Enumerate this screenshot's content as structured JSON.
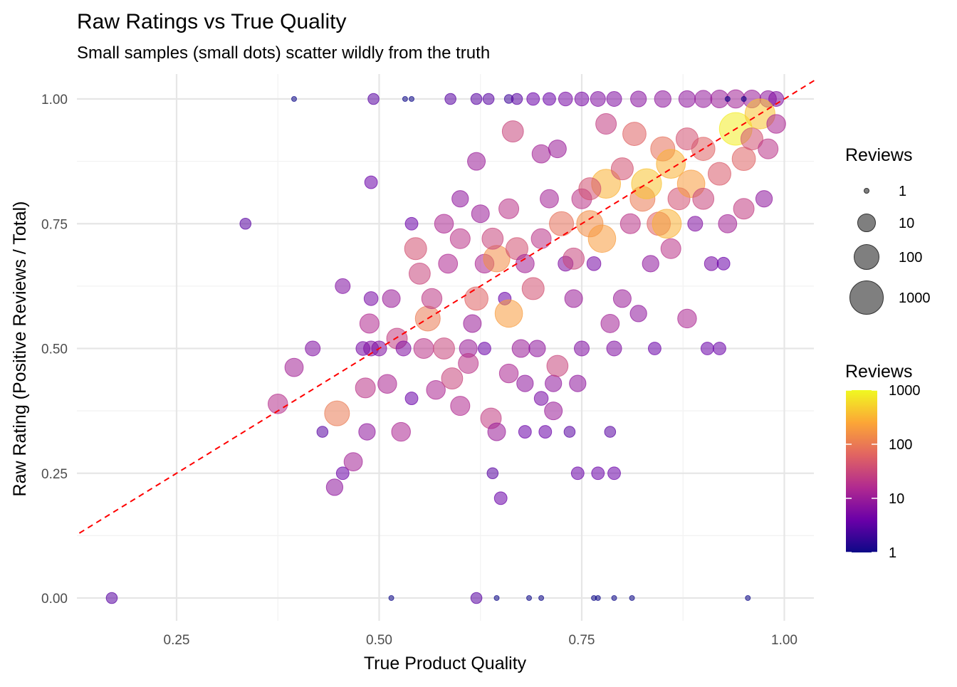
{
  "chart_data": {
    "type": "scatter",
    "title": "Raw Ratings vs True Quality",
    "subtitle": "Small samples (small dots) scatter wildly from the truth",
    "xlabel": "True Product Quality",
    "ylabel": "Raw Rating (Positive Reviews / Total)",
    "xlim": [
      0.127,
      1.037
    ],
    "ylim": [
      -0.045,
      1.045
    ],
    "x_ticks": [
      "0.25",
      "0.50",
      "0.75",
      "1.00"
    ],
    "y_ticks": [
      "0.00",
      "0.25",
      "0.50",
      "0.75",
      "1.00"
    ],
    "grid": true,
    "reference_line": {
      "type": "y = x",
      "style": "dashed",
      "color": "#ff0000"
    },
    "size_legend": {
      "title": "Reviews",
      "labels": [
        "1",
        "10",
        "100",
        "1000"
      ],
      "values": [
        1,
        10,
        100,
        1000
      ]
    },
    "color_legend": {
      "title": "Reviews",
      "labels": [
        "1000",
        "100",
        "10",
        "1"
      ],
      "values": [
        1000,
        100,
        10,
        1
      ],
      "scale": "log10",
      "palette": [
        "#0d0887",
        "#6a00a8",
        "#b12a90",
        "#e16462",
        "#fca636",
        "#f0f921"
      ]
    },
    "legend_placement": "right",
    "points": [
      [
        0.395,
        1,
        1
      ],
      [
        0.493,
        1,
        3
      ],
      [
        0.532,
        1,
        1
      ],
      [
        0.54,
        1,
        1
      ],
      [
        0.588,
        1,
        3
      ],
      [
        0.62,
        1,
        3
      ],
      [
        0.635,
        1,
        3
      ],
      [
        0.66,
        1,
        2
      ],
      [
        0.67,
        1,
        3
      ],
      [
        0.69,
        1,
        4
      ],
      [
        0.71,
        1,
        4
      ],
      [
        0.73,
        1,
        5
      ],
      [
        0.75,
        1,
        5
      ],
      [
        0.77,
        1,
        6
      ],
      [
        0.79,
        1,
        6
      ],
      [
        0.82,
        1,
        7
      ],
      [
        0.85,
        1,
        8
      ],
      [
        0.88,
        1,
        8
      ],
      [
        0.9,
        1,
        9
      ],
      [
        0.92,
        1,
        10
      ],
      [
        0.94,
        1,
        12
      ],
      [
        0.96,
        1,
        10
      ],
      [
        0.98,
        1,
        8
      ],
      [
        0.99,
        1,
        6
      ],
      [
        0.93,
        1,
        1
      ],
      [
        0.95,
        1,
        1
      ],
      [
        0.17,
        0,
        3
      ],
      [
        0.515,
        0,
        1
      ],
      [
        0.62,
        0,
        3
      ],
      [
        0.645,
        0,
        1
      ],
      [
        0.685,
        0,
        1
      ],
      [
        0.7,
        0,
        1
      ],
      [
        0.765,
        0,
        1
      ],
      [
        0.77,
        0,
        1
      ],
      [
        0.79,
        0,
        1
      ],
      [
        0.812,
        0,
        1
      ],
      [
        0.955,
        0,
        1
      ],
      [
        0.335,
        0.75,
        3
      ],
      [
        0.49,
        0.833,
        4
      ],
      [
        0.375,
        0.389,
        18
      ],
      [
        0.395,
        0.462,
        12
      ],
      [
        0.418,
        0.5,
        6
      ],
      [
        0.43,
        0.333,
        3
      ],
      [
        0.445,
        0.222,
        8
      ],
      [
        0.448,
        0.37,
        100
      ],
      [
        0.455,
        0.25,
        4
      ],
      [
        0.455,
        0.625,
        6
      ],
      [
        0.468,
        0.273,
        12
      ],
      [
        0.48,
        0.5,
        5
      ],
      [
        0.49,
        0.5,
        6
      ],
      [
        0.483,
        0.421,
        20
      ],
      [
        0.485,
        0.333,
        8
      ],
      [
        0.488,
        0.55,
        16
      ],
      [
        0.49,
        0.6,
        5
      ],
      [
        0.5,
        0.5,
        6
      ],
      [
        0.51,
        0.429,
        14
      ],
      [
        0.515,
        0.6,
        10
      ],
      [
        0.522,
        0.52,
        25
      ],
      [
        0.527,
        0.333,
        14
      ],
      [
        0.53,
        0.5,
        6
      ],
      [
        0.54,
        0.4,
        4
      ],
      [
        0.54,
        0.75,
        4
      ],
      [
        0.545,
        0.7,
        40
      ],
      [
        0.55,
        0.65,
        30
      ],
      [
        0.555,
        0.5,
        20
      ],
      [
        0.56,
        0.56,
        100
      ],
      [
        0.565,
        0.6,
        22
      ],
      [
        0.57,
        0.417,
        14
      ],
      [
        0.58,
        0.5,
        30
      ],
      [
        0.585,
        0.67,
        15
      ],
      [
        0.59,
        0.44,
        30
      ],
      [
        0.6,
        0.385,
        16
      ],
      [
        0.61,
        0.5,
        10
      ],
      [
        0.61,
        0.47,
        20
      ],
      [
        0.615,
        0.55,
        10
      ],
      [
        0.62,
        0.6,
        60
      ],
      [
        0.62,
        0.875,
        10
      ],
      [
        0.625,
        0.77,
        10
      ],
      [
        0.63,
        0.5,
        4
      ],
      [
        0.63,
        0.67,
        14
      ],
      [
        0.638,
        0.36,
        25
      ],
      [
        0.64,
        0.25,
        3
      ],
      [
        0.645,
        0.68,
        150
      ],
      [
        0.645,
        0.333,
        10
      ],
      [
        0.65,
        0.2,
        4
      ],
      [
        0.655,
        0.6,
        4
      ],
      [
        0.66,
        0.57,
        200
      ],
      [
        0.66,
        0.45,
        14
      ],
      [
        0.665,
        0.935,
        30
      ],
      [
        0.67,
        0.7,
        40
      ],
      [
        0.675,
        0.5,
        10
      ],
      [
        0.68,
        0.43,
        8
      ],
      [
        0.68,
        0.333,
        4
      ],
      [
        0.69,
        0.62,
        40
      ],
      [
        0.695,
        0.5,
        8
      ],
      [
        0.7,
        0.4,
        5
      ],
      [
        0.7,
        0.72,
        20
      ],
      [
        0.7,
        0.89,
        12
      ],
      [
        0.705,
        0.333,
        4
      ],
      [
        0.71,
        0.8,
        12
      ],
      [
        0.715,
        0.43,
        8
      ],
      [
        0.715,
        0.375,
        10
      ],
      [
        0.72,
        0.465,
        30
      ],
      [
        0.72,
        0.9,
        10
      ],
      [
        0.725,
        0.75,
        80
      ],
      [
        0.73,
        0.67,
        6
      ],
      [
        0.735,
        0.333,
        3
      ],
      [
        0.74,
        0.6,
        10
      ],
      [
        0.745,
        0.25,
        4
      ],
      [
        0.745,
        0.43,
        8
      ],
      [
        0.75,
        0.8,
        20
      ],
      [
        0.75,
        0.5,
        6
      ],
      [
        0.76,
        0.75,
        150
      ],
      [
        0.765,
        0.67,
        5
      ],
      [
        0.77,
        0.25,
        4
      ],
      [
        0.775,
        0.72,
        200
      ],
      [
        0.78,
        0.83,
        300
      ],
      [
        0.78,
        0.95,
        25
      ],
      [
        0.785,
        0.333,
        3
      ],
      [
        0.785,
        0.55,
        12
      ],
      [
        0.79,
        0.25,
        4
      ],
      [
        0.79,
        0.5,
        6
      ],
      [
        0.8,
        0.86,
        40
      ],
      [
        0.8,
        0.6,
        10
      ],
      [
        0.81,
        0.75,
        20
      ],
      [
        0.815,
        0.93,
        60
      ],
      [
        0.82,
        0.57,
        8
      ],
      [
        0.825,
        0.8,
        100
      ],
      [
        0.83,
        0.83,
        400
      ],
      [
        0.835,
        0.67,
        8
      ],
      [
        0.84,
        0.5,
        4
      ],
      [
        0.845,
        0.75,
        60
      ],
      [
        0.85,
        0.9,
        80
      ],
      [
        0.855,
        0.75,
        300
      ],
      [
        0.86,
        0.87,
        300
      ],
      [
        0.87,
        0.8,
        40
      ],
      [
        0.88,
        0.56,
        14
      ],
      [
        0.885,
        0.83,
        200
      ],
      [
        0.89,
        0.75,
        6
      ],
      [
        0.9,
        0.9,
        60
      ],
      [
        0.905,
        0.5,
        4
      ],
      [
        0.91,
        0.67,
        5
      ],
      [
        0.92,
        0.5,
        4
      ],
      [
        0.925,
        0.67,
        4
      ],
      [
        0.93,
        0.75,
        12
      ],
      [
        0.94,
        0.94,
        800
      ],
      [
        0.95,
        0.88,
        60
      ],
      [
        0.96,
        0.92,
        40
      ],
      [
        0.97,
        0.97,
        400
      ],
      [
        0.975,
        0.8,
        8
      ],
      [
        0.98,
        0.9,
        20
      ],
      [
        0.99,
        0.95,
        14
      ],
      [
        0.6,
        0.8,
        8
      ],
      [
        0.58,
        0.75,
        14
      ],
      [
        0.6,
        0.72,
        20
      ],
      [
        0.66,
        0.78,
        20
      ],
      [
        0.64,
        0.72,
        30
      ],
      [
        0.68,
        0.67,
        12
      ],
      [
        0.76,
        0.82,
        40
      ],
      [
        0.74,
        0.68,
        30
      ],
      [
        0.86,
        0.7,
        20
      ],
      [
        0.9,
        0.8,
        30
      ],
      [
        0.92,
        0.85,
        50
      ],
      [
        0.88,
        0.92,
        40
      ],
      [
        0.95,
        0.78,
        25
      ]
    ]
  }
}
